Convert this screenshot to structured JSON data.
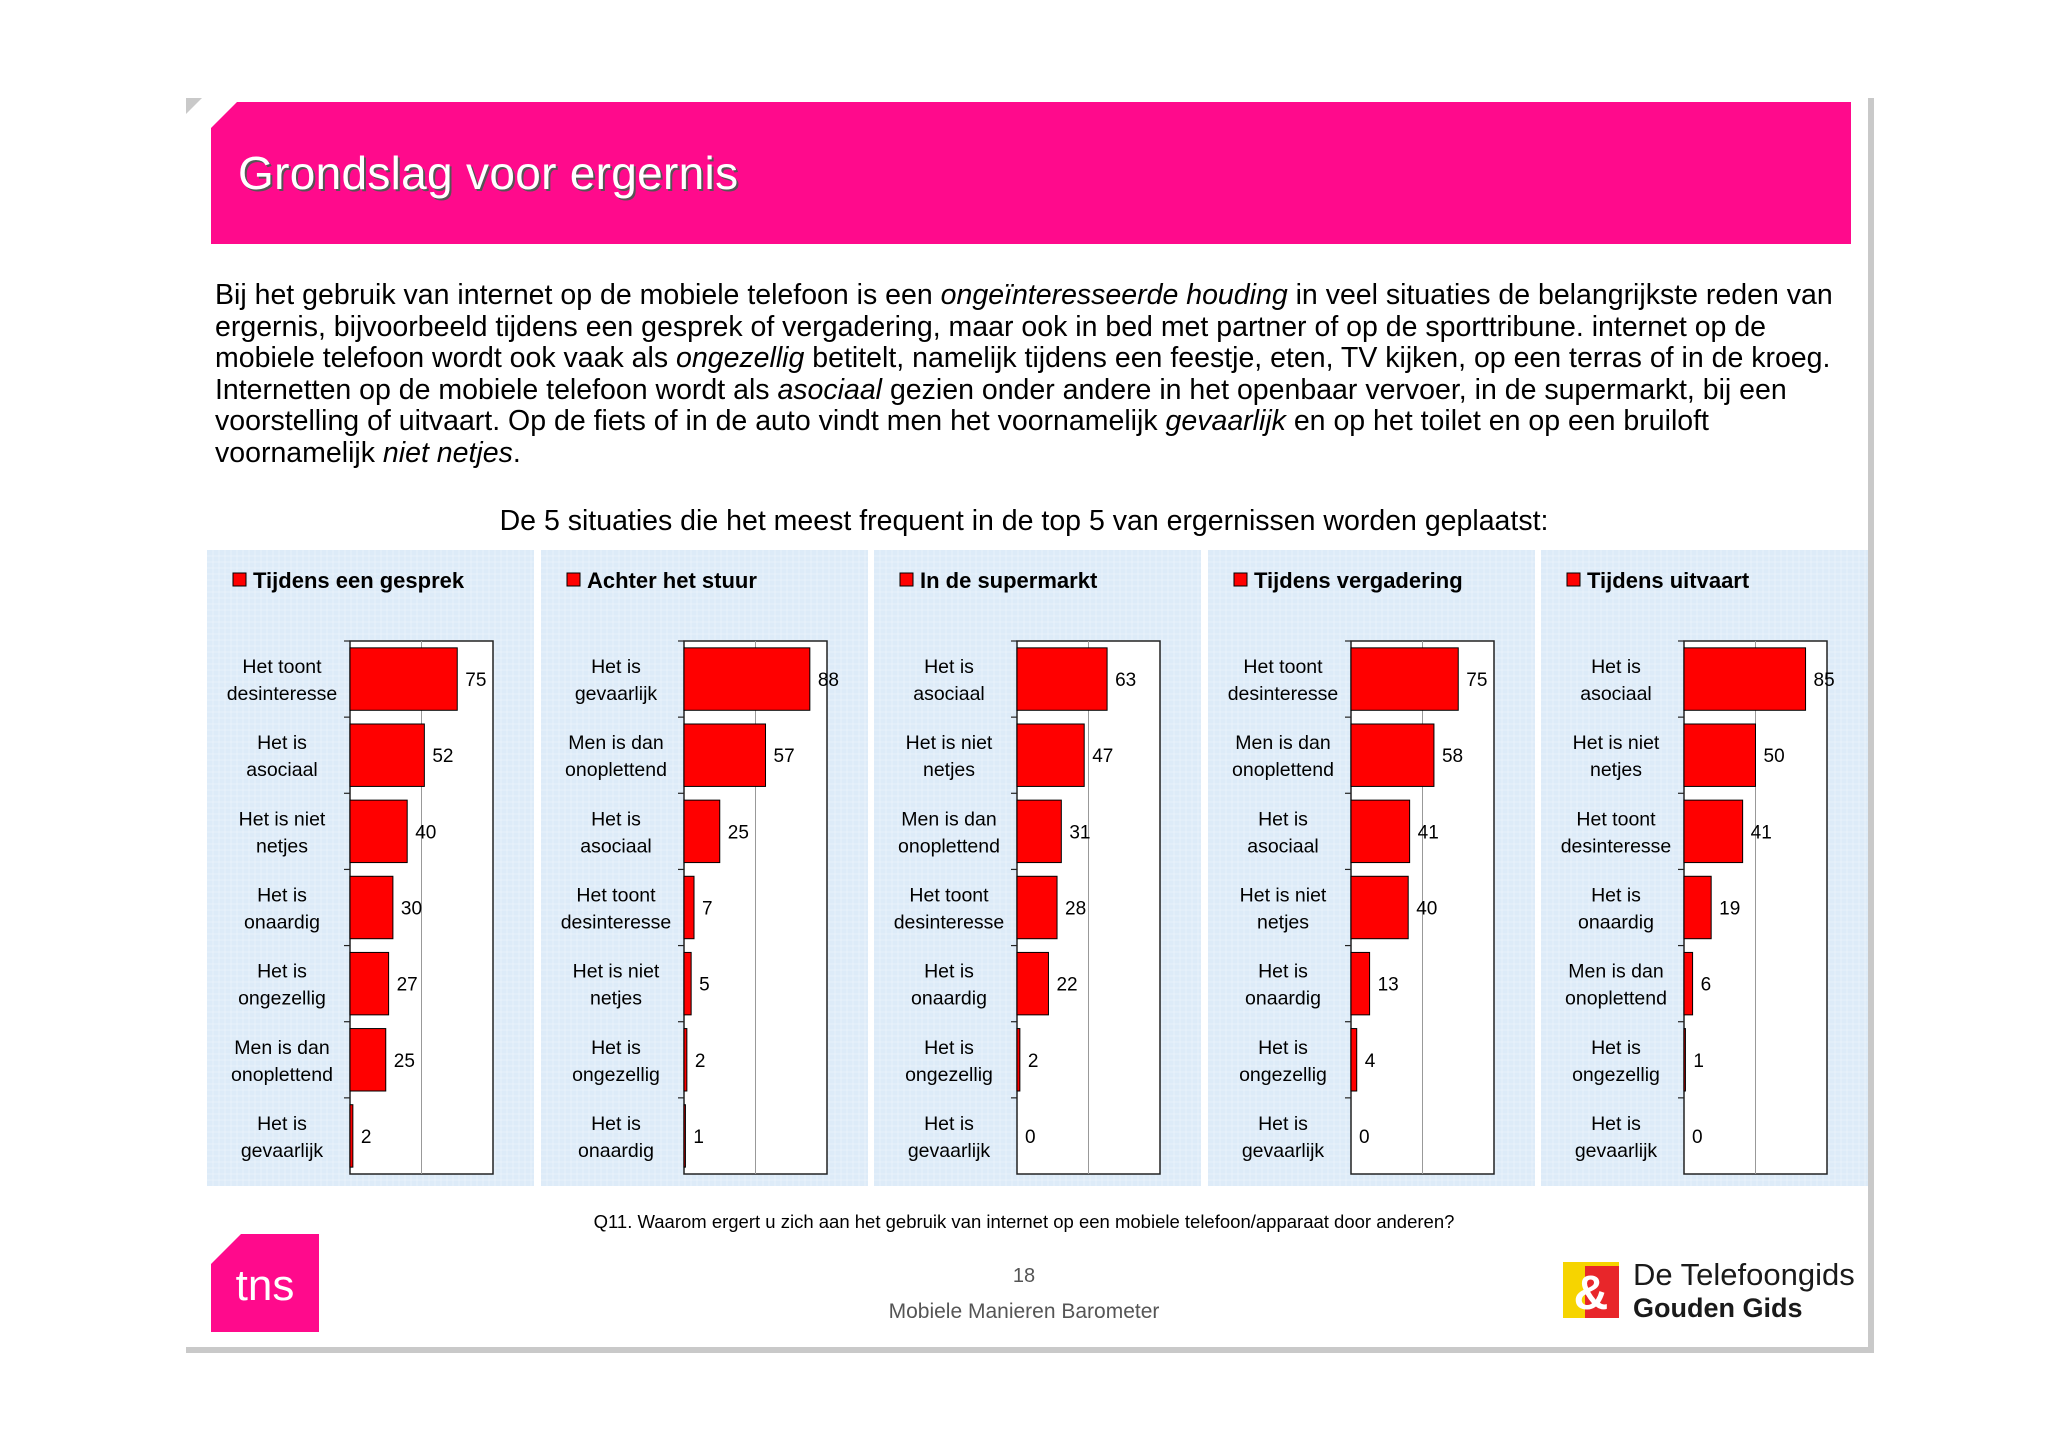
{
  "title": "Grondslag voor ergernis",
  "intro": [
    {
      "t": "Bij het gebruik van internet op de mobiele telefoon is een "
    },
    {
      "t": "ongeïnteresseerde houding",
      "i": true
    },
    {
      "t": " in veel situaties de belangrijkste reden van ergernis, bijvoorbeeld tijdens een gesprek of vergadering, maar ook in bed met partner of op de sporttribune. internet op de mobiele telefoon wordt ook vaak als "
    },
    {
      "t": "ongezellig",
      "i": true
    },
    {
      "t": " betitelt, namelijk tijdens een feestje, eten, TV kijken, op een terras of in de kroeg. Internetten op de mobiele telefoon wordt als "
    },
    {
      "t": "asociaal",
      "i": true
    },
    {
      "t": " gezien onder andere in het openbaar vervoer, in de supermarkt, bij een voorstelling of uitvaart. Op de fiets of in de auto vindt men het voornamelijk "
    },
    {
      "t": "gevaarlijk",
      "i": true
    },
    {
      "t": " en op het toilet en op een bruiloft voornamelijk "
    },
    {
      "t": "niet netjes",
      "i": true
    },
    {
      "t": "."
    }
  ],
  "subtitle": "De 5 situaties die het meest frequent in de top 5 van ergernissen worden geplaatst:",
  "colors": {
    "accent": "#ff0a8c",
    "bar": "#ff0000",
    "panel": "#ddebf8"
  },
  "chart_data": [
    {
      "type": "bar",
      "orientation": "horizontal",
      "title": "Tijdens een gesprek",
      "xlim": [
        0,
        100
      ],
      "categories": [
        [
          "Het toont",
          "desinteresse"
        ],
        [
          "Het is",
          "asociaal"
        ],
        [
          "Het is niet",
          "netjes"
        ],
        [
          "Het is",
          "onaardig"
        ],
        [
          "Het is",
          "ongezellig"
        ],
        [
          "Men is dan",
          "onoplettend"
        ],
        [
          "Het is",
          "gevaarlijk"
        ]
      ],
      "values": [
        75,
        52,
        40,
        30,
        27,
        25,
        2
      ]
    },
    {
      "type": "bar",
      "orientation": "horizontal",
      "title": "Achter het stuur",
      "xlim": [
        0,
        100
      ],
      "categories": [
        [
          "Het is",
          "gevaarlijk"
        ],
        [
          "Men is dan",
          "onoplettend"
        ],
        [
          "Het is",
          "asociaal"
        ],
        [
          "Het toont",
          "desinteresse"
        ],
        [
          "Het is niet",
          "netjes"
        ],
        [
          "Het is",
          "ongezellig"
        ],
        [
          "Het is",
          "onaardig"
        ]
      ],
      "values": [
        88,
        57,
        25,
        7,
        5,
        2,
        1
      ]
    },
    {
      "type": "bar",
      "orientation": "horizontal",
      "title": "In de supermarkt",
      "xlim": [
        0,
        100
      ],
      "categories": [
        [
          "Het is",
          "asociaal"
        ],
        [
          "Het is niet",
          "netjes"
        ],
        [
          "Men is dan",
          "onoplettend"
        ],
        [
          "Het toont",
          "desinteresse"
        ],
        [
          "Het is",
          "onaardig"
        ],
        [
          "Het is",
          "ongezellig"
        ],
        [
          "Het is",
          "gevaarlijk"
        ]
      ],
      "values": [
        63,
        47,
        31,
        28,
        22,
        2,
        0
      ]
    },
    {
      "type": "bar",
      "orientation": "horizontal",
      "title": "Tijdens vergadering",
      "xlim": [
        0,
        100
      ],
      "categories": [
        [
          "Het toont",
          "desinteresse"
        ],
        [
          "Men is dan",
          "onoplettend"
        ],
        [
          "Het is",
          "asociaal"
        ],
        [
          "Het is niet",
          "netjes"
        ],
        [
          "Het is",
          "onaardig"
        ],
        [
          "Het is",
          "ongezellig"
        ],
        [
          "Het is",
          "gevaarlijk"
        ]
      ],
      "values": [
        75,
        58,
        41,
        40,
        13,
        4,
        0
      ]
    },
    {
      "type": "bar",
      "orientation": "horizontal",
      "title": "Tijdens uitvaart",
      "xlim": [
        0,
        100
      ],
      "categories": [
        [
          "Het is",
          "asociaal"
        ],
        [
          "Het is niet",
          "netjes"
        ],
        [
          "Het toont",
          "desinteresse"
        ],
        [
          "Het is",
          "onaardig"
        ],
        [
          "Men is dan",
          "onoplettend"
        ],
        [
          "Het is",
          "ongezellig"
        ],
        [
          "Het is",
          "gevaarlijk"
        ]
      ],
      "values": [
        85,
        50,
        41,
        19,
        6,
        1,
        0
      ]
    }
  ],
  "question": "Q11. Waarom ergert u zich aan het gebruik van internet op een mobiele telefoon/apparaat door anderen?",
  "page_number": "18",
  "footer_title": "Mobiele Manieren Barometer",
  "logos": {
    "tns": "tns",
    "telefoongids_line1": "De Telefoongids",
    "telefoongids_line2": "Gouden Gids"
  }
}
